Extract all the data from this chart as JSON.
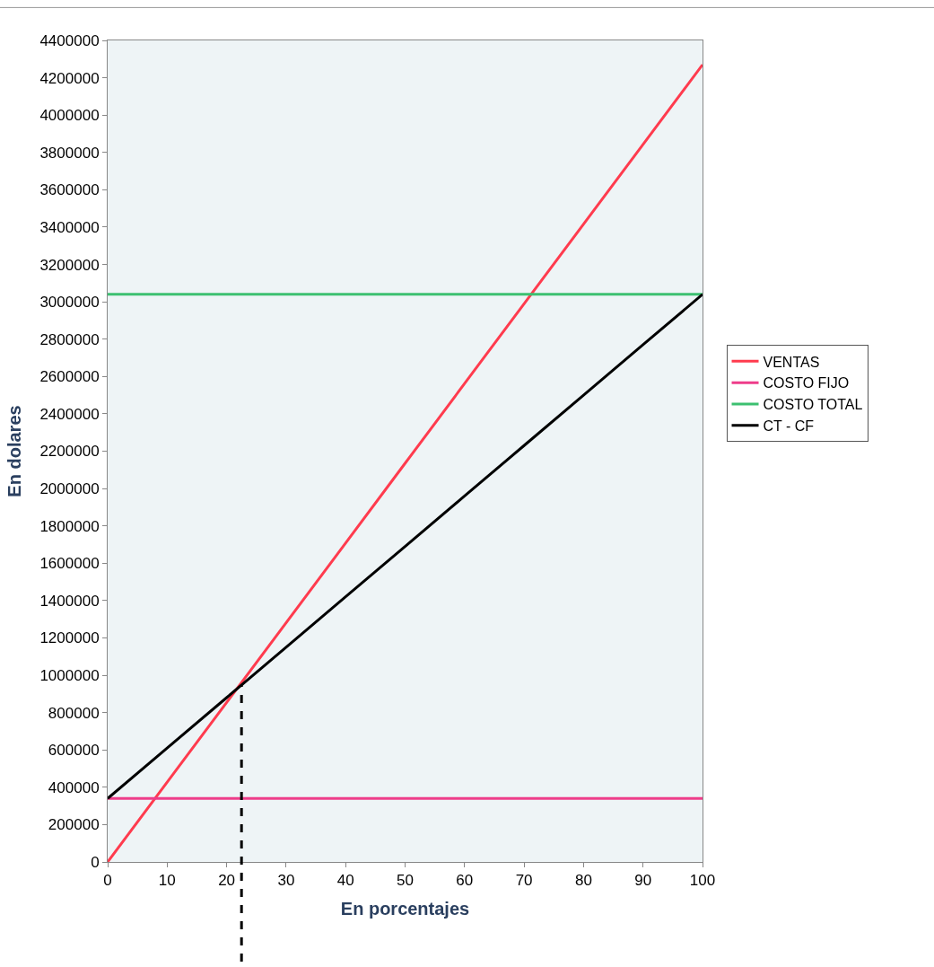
{
  "chart_data": {
    "type": "line",
    "xlabel": "En porcentajes",
    "ylabel": "En dolares",
    "x": [
      0,
      10,
      20,
      30,
      40,
      50,
      60,
      70,
      80,
      90,
      100
    ],
    "series": [
      {
        "name": "VENTAS",
        "color": "#ff3b4e",
        "values": [
          0,
          427000,
          854000,
          1281000,
          1708000,
          2135000,
          2562000,
          2989000,
          3416000,
          3843000,
          4270000
        ]
      },
      {
        "name": "COSTO FIJO",
        "color": "#ee3d8a",
        "values": [
          340000,
          340000,
          340000,
          340000,
          340000,
          340000,
          340000,
          340000,
          340000,
          340000,
          340000
        ]
      },
      {
        "name": "COSTO TOTAL",
        "color": "#3cc070",
        "values": [
          3040000,
          3040000,
          3040000,
          3040000,
          3040000,
          3040000,
          3040000,
          3040000,
          3040000,
          3040000,
          3040000
        ]
      },
      {
        "name": "CT - CF",
        "color": "#000000",
        "values": [
          340000,
          610000,
          880000,
          1150000,
          1420000,
          1690000,
          1960000,
          2230000,
          2500000,
          2770000,
          3040000
        ]
      }
    ],
    "xlim": [
      0,
      100
    ],
    "xticks": [
      0,
      10,
      20,
      30,
      40,
      50,
      60,
      70,
      80,
      90,
      100
    ],
    "ylim": [
      0,
      4400000
    ],
    "yticks": [
      0,
      200000,
      400000,
      600000,
      800000,
      1000000,
      1200000,
      1400000,
      1600000,
      1800000,
      2000000,
      2200000,
      2400000,
      2600000,
      2800000,
      3000000,
      3200000,
      3400000,
      3600000,
      3800000,
      4000000,
      4200000,
      4400000
    ],
    "ref_lines": [
      {
        "axis": "x",
        "value": 22.5,
        "color": "#000000",
        "line_style": "dashed"
      }
    ],
    "legend": "right",
    "grid": false,
    "marker": "none",
    "line_style": "solid"
  }
}
